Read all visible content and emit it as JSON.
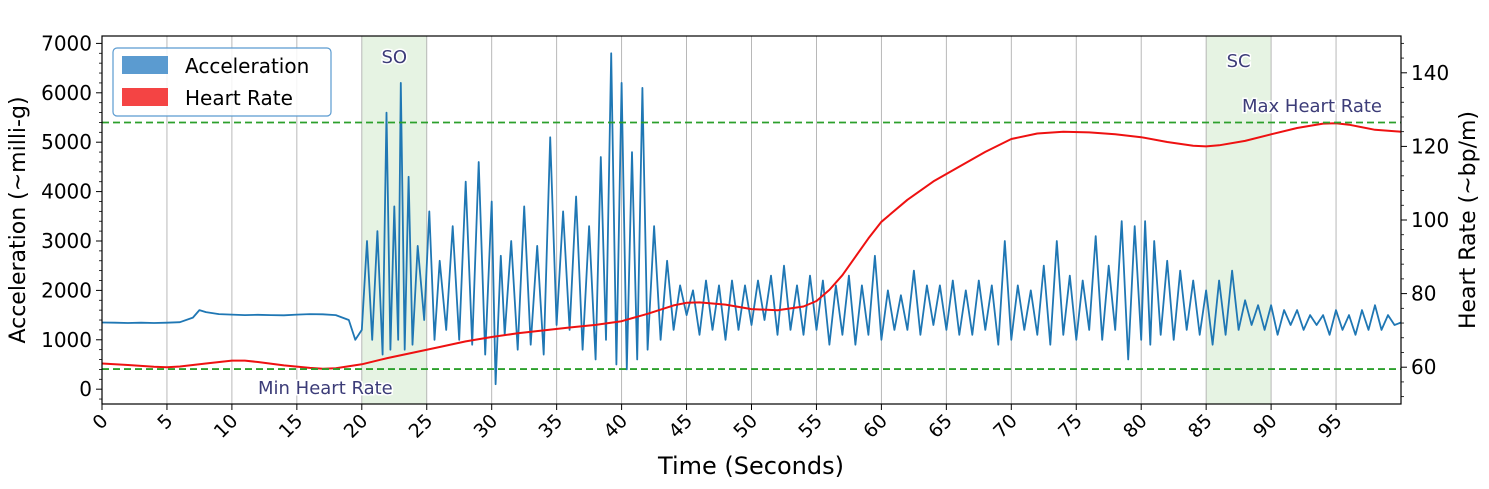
{
  "chart_data": {
    "type": "line",
    "xlabel": "Time (Seconds)",
    "ylabel_left": "Acceleration (~milli-g)",
    "ylabel_right": "Heart Rate (~bp/m)",
    "xlim": [
      0,
      100
    ],
    "ylim_left": [
      -300,
      7150
    ],
    "ylim_right": [
      50,
      150
    ],
    "x_ticks": [
      0,
      5,
      10,
      15,
      20,
      25,
      30,
      35,
      40,
      45,
      50,
      55,
      60,
      65,
      70,
      75,
      80,
      85,
      90,
      95
    ],
    "x_tick_labels": [
      "0",
      "5",
      "10",
      "15",
      "20",
      "25",
      "30",
      "35",
      "40",
      "45",
      "50",
      "55",
      "60",
      "65",
      "70",
      "75",
      "80",
      "85",
      "90",
      "95"
    ],
    "y_left_ticks": [
      0,
      1000,
      2000,
      3000,
      4000,
      5000,
      6000,
      7000
    ],
    "y_left_tick_labels": [
      "0",
      "1000",
      "2000",
      "3000",
      "4000",
      "5000",
      "6000",
      "7000"
    ],
    "y_right_ticks": [
      60,
      80,
      100,
      120,
      140
    ],
    "y_right_tick_labels": [
      "60",
      "80",
      "100",
      "120",
      "140"
    ],
    "grid": "vertical",
    "legend": {
      "placement": "top-left",
      "entries": [
        {
          "label": "Acceleration",
          "color": "#5b9bd0"
        },
        {
          "label": "Heart Rate",
          "color": "#f44444"
        }
      ]
    },
    "shaded_regions": [
      {
        "label": "SO",
        "x_start": 20,
        "x_end": 25,
        "color": "#e6f3e3"
      },
      {
        "label": "SC",
        "x_start": 85,
        "x_end": 90,
        "color": "#e6f3e3"
      }
    ],
    "reference_lines": [
      {
        "label": "Max Heart Rate",
        "value": 126.5,
        "axis": "right",
        "color": "#2ca02c"
      },
      {
        "label": "Min Heart Rate",
        "value": 59.5,
        "axis": "right",
        "color": "#2ca02c"
      }
    ],
    "series": [
      {
        "name": "Acceleration",
        "axis": "left",
        "color": "#1f77b4",
        "points": [
          [
            0,
            1350
          ],
          [
            1,
            1345
          ],
          [
            2,
            1340
          ],
          [
            3,
            1345
          ],
          [
            4,
            1340
          ],
          [
            5,
            1345
          ],
          [
            6,
            1355
          ],
          [
            7,
            1450
          ],
          [
            7.5,
            1600
          ],
          [
            8,
            1560
          ],
          [
            9,
            1520
          ],
          [
            10,
            1510
          ],
          [
            11,
            1500
          ],
          [
            12,
            1505
          ],
          [
            13,
            1500
          ],
          [
            14,
            1495
          ],
          [
            15,
            1510
          ],
          [
            16,
            1520
          ],
          [
            17,
            1515
          ],
          [
            18,
            1500
          ],
          [
            19,
            1400
          ],
          [
            19.5,
            1000
          ],
          [
            20,
            1200
          ],
          [
            20.4,
            3000
          ],
          [
            20.8,
            1000
          ],
          [
            21.2,
            3200
          ],
          [
            21.6,
            700
          ],
          [
            21.9,
            5600
          ],
          [
            22.2,
            800
          ],
          [
            22.5,
            3700
          ],
          [
            22.8,
            1000
          ],
          [
            23.0,
            6200
          ],
          [
            23.3,
            800
          ],
          [
            23.6,
            4300
          ],
          [
            23.9,
            900
          ],
          [
            24.3,
            2900
          ],
          [
            24.8,
            1400
          ],
          [
            25.2,
            3600
          ],
          [
            25.6,
            1000
          ],
          [
            26,
            2600
          ],
          [
            26.5,
            1200
          ],
          [
            27,
            3300
          ],
          [
            27.5,
            1000
          ],
          [
            28,
            4200
          ],
          [
            28.5,
            900
          ],
          [
            29,
            4600
          ],
          [
            29.5,
            700
          ],
          [
            30,
            3800
          ],
          [
            30.3,
            100
          ],
          [
            30.7,
            2700
          ],
          [
            31,
            1100
          ],
          [
            31.5,
            3000
          ],
          [
            32,
            800
          ],
          [
            32.5,
            3700
          ],
          [
            33,
            900
          ],
          [
            33.5,
            2900
          ],
          [
            34,
            700
          ],
          [
            34.5,
            5100
          ],
          [
            35,
            1300
          ],
          [
            35.5,
            3600
          ],
          [
            36,
            1200
          ],
          [
            36.5,
            3900
          ],
          [
            37,
            800
          ],
          [
            37.5,
            3300
          ],
          [
            38,
            600
          ],
          [
            38.4,
            4700
          ],
          [
            38.8,
            1000
          ],
          [
            39.2,
            6800
          ],
          [
            39.6,
            500
          ],
          [
            40.0,
            6200
          ],
          [
            40.4,
            400
          ],
          [
            40.8,
            4800
          ],
          [
            41.2,
            600
          ],
          [
            41.6,
            6100
          ],
          [
            42,
            800
          ],
          [
            42.5,
            3300
          ],
          [
            43,
            1000
          ],
          [
            43.5,
            2600
          ],
          [
            44,
            1200
          ],
          [
            44.5,
            2100
          ],
          [
            45,
            1500
          ],
          [
            45.5,
            2000
          ],
          [
            46,
            1100
          ],
          [
            46.5,
            2200
          ],
          [
            47,
            1200
          ],
          [
            47.5,
            2100
          ],
          [
            48,
            1000
          ],
          [
            48.5,
            2200
          ],
          [
            49,
            1200
          ],
          [
            49.5,
            2100
          ],
          [
            50,
            1300
          ],
          [
            50.5,
            2200
          ],
          [
            51,
            1400
          ],
          [
            51.5,
            2300
          ],
          [
            52,
            1100
          ],
          [
            52.5,
            2500
          ],
          [
            53,
            1200
          ],
          [
            53.5,
            2100
          ],
          [
            54,
            1100
          ],
          [
            54.5,
            2300
          ],
          [
            55,
            1200
          ],
          [
            55.5,
            2200
          ],
          [
            56,
            900
          ],
          [
            56.5,
            2100
          ],
          [
            57,
            1100
          ],
          [
            57.5,
            2300
          ],
          [
            58,
            900
          ],
          [
            58.5,
            2100
          ],
          [
            59,
            1100
          ],
          [
            59.5,
            2700
          ],
          [
            60,
            1000
          ],
          [
            60.5,
            2000
          ],
          [
            61,
            1200
          ],
          [
            61.5,
            1900
          ],
          [
            62,
            1200
          ],
          [
            62.5,
            2400
          ],
          [
            63,
            1100
          ],
          [
            63.5,
            2100
          ],
          [
            64,
            1300
          ],
          [
            64.5,
            2100
          ],
          [
            65,
            1200
          ],
          [
            65.5,
            2200
          ],
          [
            66,
            1100
          ],
          [
            66.5,
            2000
          ],
          [
            67,
            1100
          ],
          [
            67.5,
            2200
          ],
          [
            68,
            1200
          ],
          [
            68.5,
            2100
          ],
          [
            69,
            900
          ],
          [
            69.5,
            3000
          ],
          [
            70,
            1000
          ],
          [
            70.5,
            2100
          ],
          [
            71,
            1200
          ],
          [
            71.5,
            2000
          ],
          [
            72,
            1100
          ],
          [
            72.5,
            2500
          ],
          [
            73,
            900
          ],
          [
            73.5,
            3000
          ],
          [
            74,
            1100
          ],
          [
            74.5,
            2300
          ],
          [
            75,
            1000
          ],
          [
            75.5,
            2200
          ],
          [
            76,
            1200
          ],
          [
            76.5,
            3100
          ],
          [
            77,
            1000
          ],
          [
            77.5,
            2500
          ],
          [
            78,
            1200
          ],
          [
            78.5,
            3400
          ],
          [
            79,
            600
          ],
          [
            79.5,
            3300
          ],
          [
            80,
            1000
          ],
          [
            80.3,
            3400
          ],
          [
            80.7,
            900
          ],
          [
            81,
            3000
          ],
          [
            81.5,
            1100
          ],
          [
            82,
            2600
          ],
          [
            82.5,
            1000
          ],
          [
            83,
            2400
          ],
          [
            83.5,
            1200
          ],
          [
            84,
            2200
          ],
          [
            84.5,
            1100
          ],
          [
            85,
            2000
          ],
          [
            85.5,
            900
          ],
          [
            86,
            2200
          ],
          [
            86.5,
            1100
          ],
          [
            87,
            2400
          ],
          [
            87.5,
            1200
          ],
          [
            88,
            1800
          ],
          [
            88.5,
            1300
          ],
          [
            89,
            1700
          ],
          [
            89.5,
            1200
          ],
          [
            90,
            1700
          ],
          [
            90.5,
            1100
          ],
          [
            91,
            1600
          ],
          [
            91.5,
            1300
          ],
          [
            92,
            1600
          ],
          [
            92.5,
            1200
          ],
          [
            93,
            1500
          ],
          [
            93.5,
            1300
          ],
          [
            94,
            1500
          ],
          [
            94.5,
            1100
          ],
          [
            95,
            1600
          ],
          [
            95.5,
            1200
          ],
          [
            96,
            1500
          ],
          [
            96.5,
            1100
          ],
          [
            97,
            1600
          ],
          [
            97.5,
            1200
          ],
          [
            98,
            1700
          ],
          [
            98.5,
            1200
          ],
          [
            99,
            1500
          ],
          [
            99.5,
            1300
          ],
          [
            100,
            1350
          ]
        ]
      },
      {
        "name": "Heart Rate",
        "axis": "right",
        "color": "#ee1111",
        "points": [
          [
            0,
            61
          ],
          [
            2,
            60.6
          ],
          [
            4,
            60.1
          ],
          [
            5,
            60
          ],
          [
            6,
            60.2
          ],
          [
            8,
            61
          ],
          [
            10,
            61.8
          ],
          [
            11,
            61.8
          ],
          [
            12,
            61.4
          ],
          [
            14,
            60.5
          ],
          [
            16,
            59.8
          ],
          [
            17,
            59.6
          ],
          [
            18,
            59.7
          ],
          [
            20,
            60.8
          ],
          [
            22,
            62.5
          ],
          [
            24,
            64
          ],
          [
            26,
            65.5
          ],
          [
            28,
            67
          ],
          [
            30,
            68.2
          ],
          [
            32,
            69.2
          ],
          [
            34,
            70
          ],
          [
            36,
            70.8
          ],
          [
            38,
            71.5
          ],
          [
            40,
            72.5
          ],
          [
            42,
            74.5
          ],
          [
            44,
            76.8
          ],
          [
            45,
            77.5
          ],
          [
            46,
            77.6
          ],
          [
            48,
            77
          ],
          [
            50,
            75.8
          ],
          [
            52,
            75.5
          ],
          [
            54,
            76.5
          ],
          [
            55,
            78
          ],
          [
            56,
            81
          ],
          [
            57,
            85
          ],
          [
            58,
            90
          ],
          [
            59,
            95
          ],
          [
            60,
            99.5
          ],
          [
            62,
            105.5
          ],
          [
            64,
            110.5
          ],
          [
            66,
            114.5
          ],
          [
            68,
            118.5
          ],
          [
            70,
            122
          ],
          [
            72,
            123.5
          ],
          [
            74,
            124
          ],
          [
            76,
            123.8
          ],
          [
            78,
            123.3
          ],
          [
            80,
            122.5
          ],
          [
            82,
            121.2
          ],
          [
            84,
            120.2
          ],
          [
            85,
            120
          ],
          [
            86,
            120.3
          ],
          [
            88,
            121.5
          ],
          [
            90,
            123.3
          ],
          [
            92,
            125
          ],
          [
            94,
            126.2
          ],
          [
            95,
            126.3
          ],
          [
            96,
            125.9
          ],
          [
            98,
            124.5
          ],
          [
            100,
            124
          ]
        ]
      }
    ]
  }
}
